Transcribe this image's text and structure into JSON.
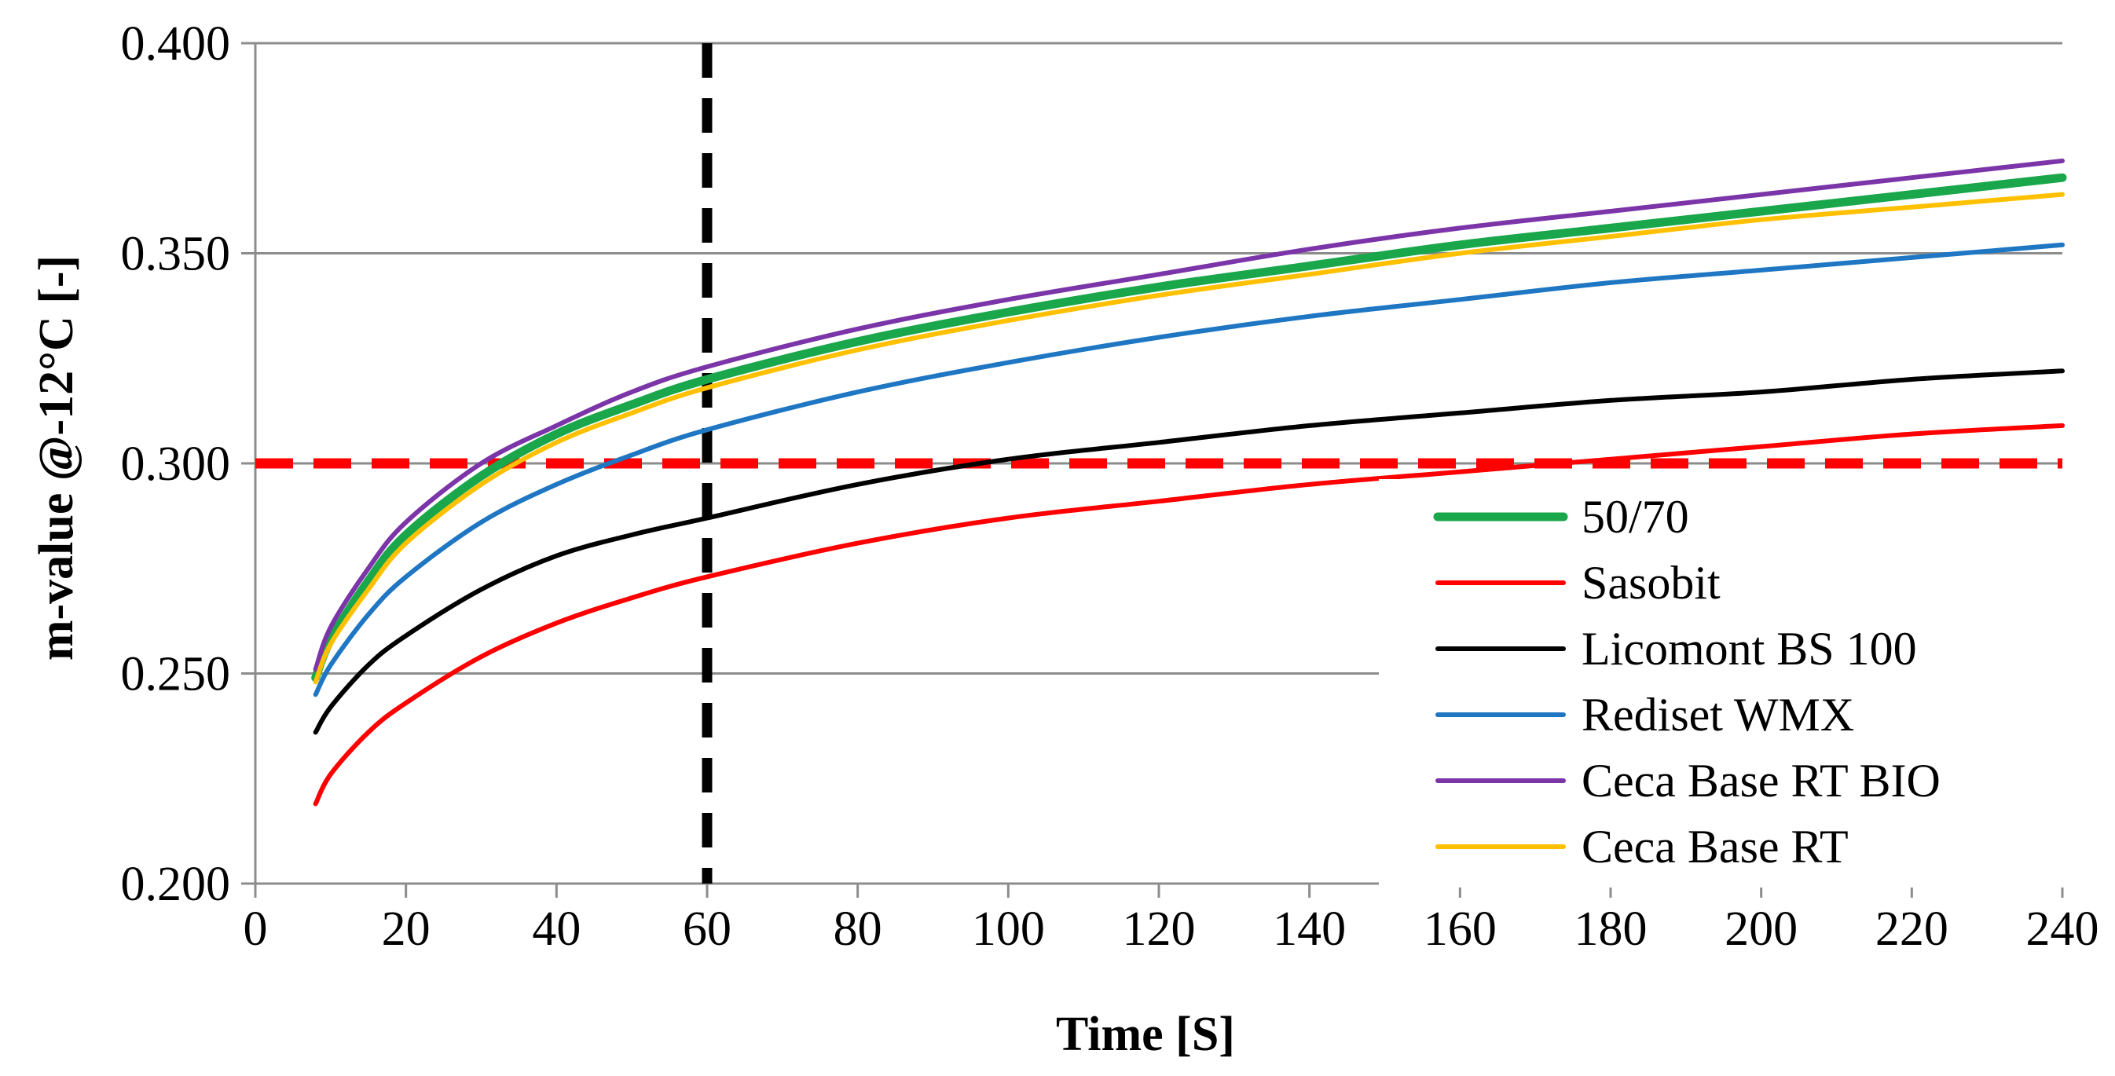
{
  "chart_data": {
    "type": "line",
    "title": "",
    "xlabel": "Time [S]",
    "ylabel": "m-value @-12°C [-]",
    "xlim": [
      0,
      240
    ],
    "ylim": [
      0.2,
      0.4
    ],
    "x_ticks": [
      0,
      20,
      40,
      60,
      80,
      100,
      120,
      140,
      160,
      180,
      200,
      220,
      240
    ],
    "x_tick_labels": [
      "0",
      "20",
      "40",
      "60",
      "80",
      "100",
      "120",
      "140",
      "160",
      "180",
      "200",
      "220",
      "240"
    ],
    "y_ticks": [
      0.2,
      0.25,
      0.3,
      0.35,
      0.4
    ],
    "y_tick_labels": [
      "0.200",
      "0.250",
      "0.300",
      "0.350",
      "0.400"
    ],
    "grid": "horizontal",
    "legend_position": "right",
    "x": [
      8,
      10,
      15,
      20,
      30,
      40,
      50,
      60,
      80,
      100,
      120,
      140,
      160,
      180,
      200,
      220,
      240
    ],
    "series": [
      {
        "name": "50/70",
        "color": "#1aa64a",
        "values": [
          0.249,
          0.258,
          0.272,
          0.283,
          0.297,
          0.307,
          0.314,
          0.32,
          0.329,
          0.336,
          0.342,
          0.347,
          0.352,
          0.356,
          0.36,
          0.364,
          0.368
        ]
      },
      {
        "name": "Sasobit",
        "color": "#ff0000",
        "values": [
          0.219,
          0.226,
          0.236,
          0.243,
          0.254,
          0.262,
          0.268,
          0.273,
          0.281,
          0.287,
          0.291,
          0.295,
          0.298,
          0.301,
          0.304,
          0.307,
          0.309
        ]
      },
      {
        "name": "Licomont BS 100",
        "color": "#000000",
        "values": [
          0.236,
          0.242,
          0.252,
          0.259,
          0.27,
          0.278,
          0.283,
          0.287,
          0.295,
          0.301,
          0.305,
          0.309,
          0.312,
          0.315,
          0.317,
          0.32,
          0.322
        ]
      },
      {
        "name": "Rediset WMX",
        "color": "#1f77c4",
        "values": [
          0.245,
          0.252,
          0.264,
          0.273,
          0.286,
          0.295,
          0.302,
          0.308,
          0.317,
          0.324,
          0.33,
          0.335,
          0.339,
          0.343,
          0.346,
          0.349,
          0.352
        ]
      },
      {
        "name": "Ceca Base RT BIO",
        "color": "#7b35a8",
        "values": [
          0.251,
          0.261,
          0.275,
          0.286,
          0.3,
          0.309,
          0.317,
          0.323,
          0.332,
          0.339,
          0.345,
          0.351,
          0.356,
          0.36,
          0.364,
          0.368,
          0.372
        ]
      },
      {
        "name": "Ceca Base RT",
        "color": "#ffc000",
        "values": [
          0.248,
          0.257,
          0.27,
          0.281,
          0.295,
          0.305,
          0.312,
          0.318,
          0.327,
          0.334,
          0.34,
          0.345,
          0.35,
          0.354,
          0.358,
          0.361,
          0.364
        ]
      }
    ],
    "reference_lines": [
      {
        "orientation": "horizontal",
        "value": 0.3,
        "color": "#ff0000",
        "style": "dashed"
      },
      {
        "orientation": "vertical",
        "value": 60,
        "color": "#000000",
        "style": "dashed"
      }
    ]
  }
}
